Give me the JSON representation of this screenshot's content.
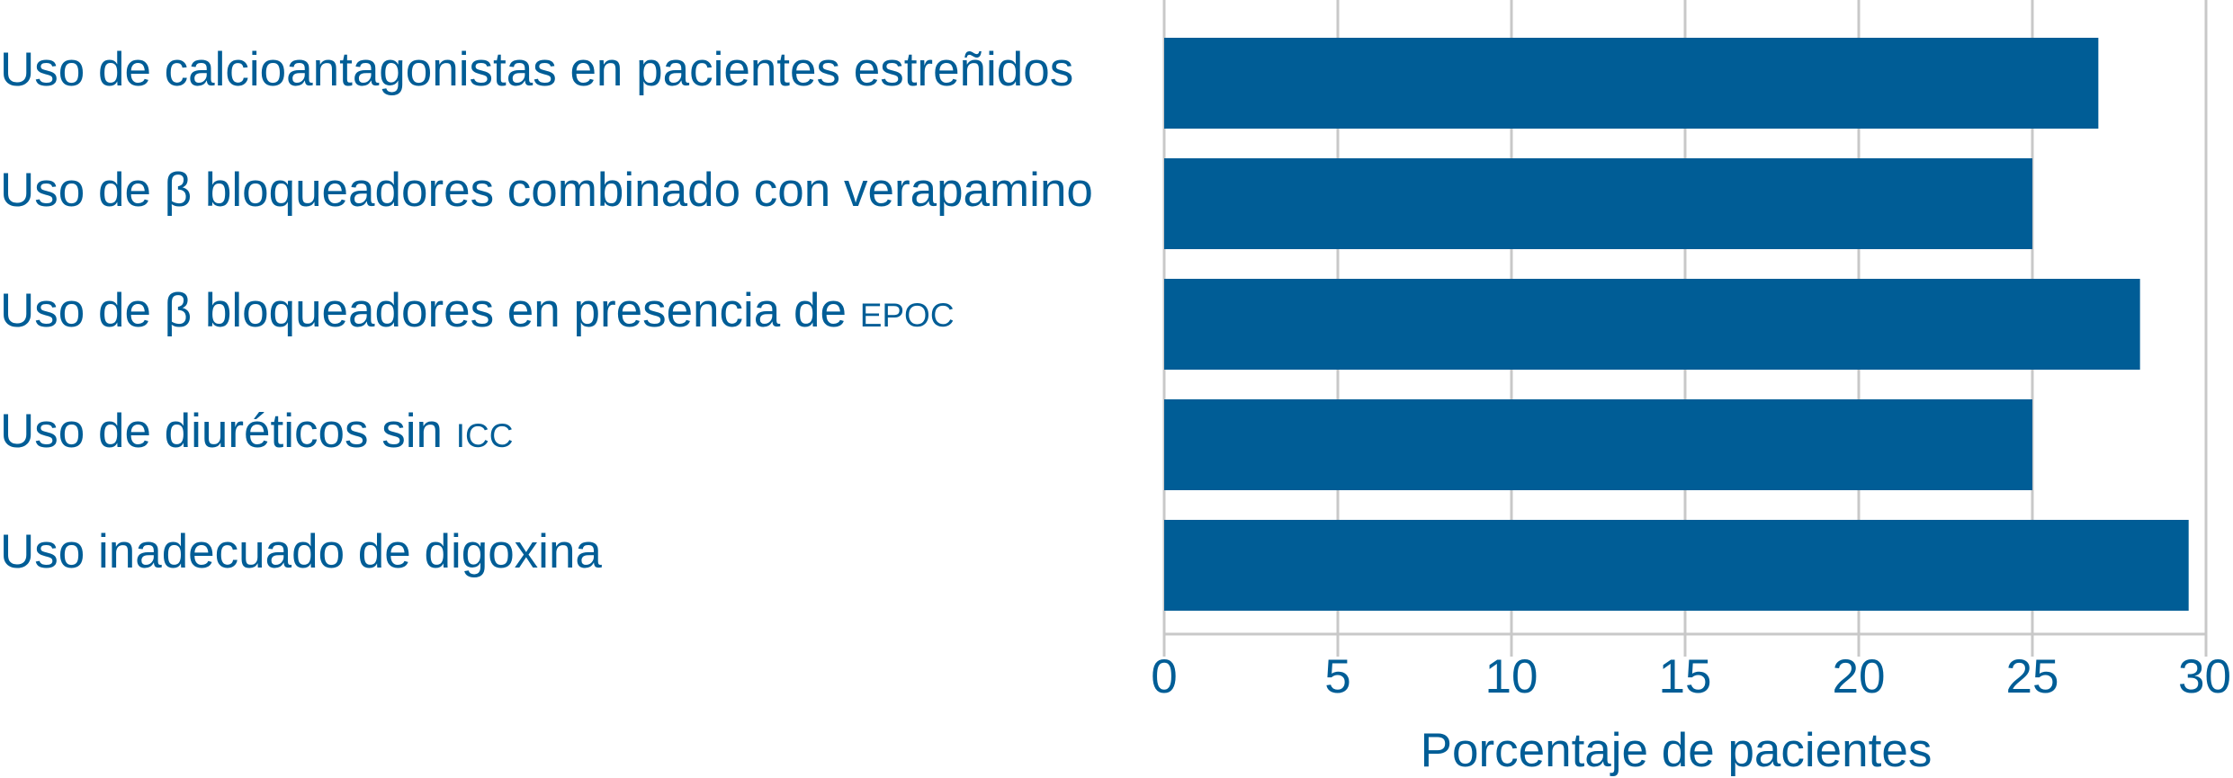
{
  "chart_data": {
    "type": "bar",
    "orientation": "horizontal",
    "categories": [
      {
        "main": "Uso de calcioantagonistas en pacientes estreñidos",
        "suffix": ""
      },
      {
        "main": "Uso de β bloqueadores combinado con verapamino",
        "suffix": ""
      },
      {
        "main": "Uso de β bloqueadores en presencia de ",
        "suffix": "EPOC"
      },
      {
        "main": "Uso de diuréticos sin ",
        "suffix": "ICC"
      },
      {
        "main": "Uso inadecuado de digoxina",
        "suffix": ""
      }
    ],
    "values": [
      26.9,
      25.0,
      28.1,
      25.0,
      29.5
    ],
    "xlabel": "Porcentaje de pacientes",
    "xlim": [
      0,
      30
    ],
    "xticks": [
      "0",
      "5",
      "10",
      "15",
      "20",
      "25",
      "30"
    ],
    "grid": true,
    "colors": {
      "bar": "#005d96",
      "text": "#005d96",
      "grid": "#c8c8c8"
    }
  }
}
